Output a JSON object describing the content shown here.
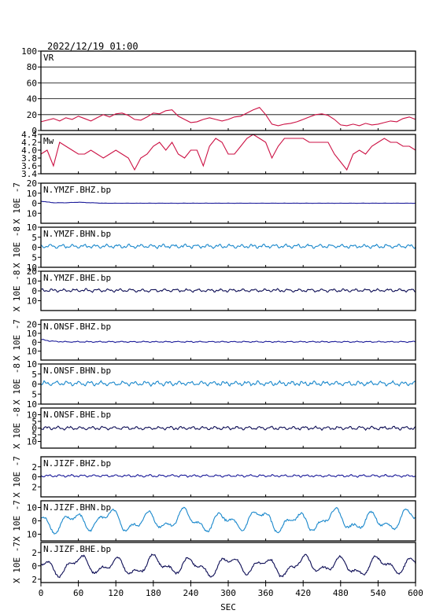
{
  "header": {
    "datetime": "2022/12/19  01:00"
  },
  "colors": {
    "vr": "#cc1144",
    "mw": "#cc1144",
    "z": "#1a1a99",
    "n": "#1a88cc",
    "e": "#0d0d55"
  },
  "chart_data": [
    {
      "type": "line",
      "name": "vr-panel",
      "label": "VR",
      "ylim": [
        0,
        100
      ],
      "yticks": [
        0,
        20,
        40,
        60,
        80,
        100
      ],
      "grid": true,
      "x": [
        0,
        10,
        20,
        30,
        40,
        50,
        60,
        70,
        80,
        90,
        100,
        110,
        120,
        130,
        140,
        150,
        160,
        170,
        180,
        190,
        200,
        210,
        220,
        230,
        240,
        250,
        260,
        270,
        280,
        290,
        300,
        310,
        320,
        330,
        340,
        350,
        360,
        370,
        380,
        390,
        400,
        410,
        420,
        430,
        440,
        450,
        460,
        470,
        480,
        490,
        500,
        510,
        520,
        530,
        540,
        550,
        560,
        570,
        580,
        590,
        600
      ],
      "values": [
        11,
        13,
        15,
        12,
        16,
        14,
        18,
        15,
        12,
        16,
        20,
        17,
        21,
        22,
        19,
        14,
        13,
        17,
        22,
        21,
        25,
        26,
        18,
        14,
        10,
        11,
        14,
        16,
        14,
        12,
        14,
        17,
        18,
        22,
        26,
        29,
        20,
        8,
        6,
        8,
        9,
        11,
        14,
        17,
        20,
        21,
        19,
        14,
        7,
        6,
        8,
        6,
        9,
        7,
        8,
        10,
        12,
        11,
        15,
        17,
        14
      ]
    },
    {
      "type": "line",
      "name": "mw-panel",
      "label": "Mw",
      "ylim": [
        3.4,
        4.4
      ],
      "yticks": [
        3.4,
        3.6,
        3.8,
        4.0,
        4.2,
        4.4
      ],
      "tick_labels": [
        "3.4",
        "3.6",
        "3.8",
        "4.0",
        "4.2",
        "4.4"
      ],
      "x": [
        0,
        10,
        20,
        30,
        40,
        50,
        60,
        70,
        80,
        90,
        100,
        110,
        120,
        130,
        140,
        150,
        160,
        170,
        180,
        190,
        200,
        210,
        220,
        230,
        240,
        250,
        260,
        270,
        280,
        290,
        300,
        310,
        320,
        330,
        340,
        350,
        360,
        370,
        380,
        390,
        400,
        410,
        420,
        430,
        440,
        450,
        460,
        470,
        480,
        490,
        500,
        510,
        520,
        530,
        540,
        550,
        560,
        570,
        580,
        590,
        600
      ],
      "values": [
        3.9,
        4.0,
        3.6,
        4.2,
        4.1,
        4.0,
        3.9,
        3.9,
        4.0,
        3.9,
        3.8,
        3.9,
        4.0,
        3.9,
        3.8,
        3.5,
        3.8,
        3.9,
        4.1,
        4.2,
        4.0,
        4.2,
        3.9,
        3.8,
        4.0,
        4.0,
        3.6,
        4.1,
        4.3,
        4.2,
        3.9,
        3.9,
        4.1,
        4.3,
        4.4,
        4.3,
        4.2,
        3.8,
        4.1,
        4.3,
        4.3,
        4.3,
        4.3,
        4.2,
        4.2,
        4.2,
        4.2,
        3.9,
        3.7,
        3.5,
        3.9,
        4.0,
        3.9,
        4.1,
        4.2,
        4.3,
        4.2,
        4.2,
        4.1,
        4.1,
        4.0
      ]
    },
    {
      "type": "line",
      "name": "ymzf-bhz-panel",
      "label": "N.YMZF.BHZ.bp",
      "ylabel": "X 10E -7",
      "component": "z",
      "ylim": [
        -20,
        20
      ],
      "yticks": [
        -10,
        0,
        10,
        20
      ],
      "tick_labels": [
        "10",
        "0",
        "10",
        "20"
      ],
      "x": [
        0,
        20,
        40,
        60,
        80,
        100,
        120,
        600
      ],
      "values": [
        2,
        0.5,
        0.5,
        1,
        0.5,
        0,
        0,
        0
      ],
      "amp": 0.15,
      "seed": 1
    },
    {
      "type": "line",
      "name": "ymzf-bhn-panel",
      "label": "N.YMZF.BHN.bp",
      "ylabel": "X 10E -8",
      "component": "n",
      "ylim": [
        -10,
        10
      ],
      "yticks": [
        -10,
        -5,
        0,
        5,
        10
      ],
      "tick_labels": [
        "10",
        "5",
        "0",
        "5",
        "10"
      ],
      "x": [
        0,
        600
      ],
      "values": [
        0.5,
        0.5
      ],
      "amp": 1.2,
      "seed": 2
    },
    {
      "type": "line",
      "name": "ymzf-bhe-panel",
      "label": "N.YMZF.BHE.bp",
      "ylabel": "X 10E -8",
      "component": "e",
      "ylim": [
        -20,
        20
      ],
      "yticks": [
        -10,
        0,
        10,
        20
      ],
      "tick_labels": [
        "10",
        "0",
        "10",
        "20"
      ],
      "x": [
        0,
        600
      ],
      "values": [
        0.5,
        0.5
      ],
      "amp": 2.0,
      "seed": 3
    },
    {
      "type": "line",
      "name": "onsf-bhz-panel",
      "label": "N.ONSF.BHZ.bp",
      "ylabel": "X 10E -7",
      "component": "z",
      "ylim": [
        -20,
        25
      ],
      "yticks": [
        -10,
        0,
        10,
        20
      ],
      "tick_labels": [
        "10",
        "0",
        "10",
        "20"
      ],
      "x": [
        0,
        20,
        40,
        600
      ],
      "values": [
        3,
        1,
        0.5,
        0.5
      ],
      "amp": 0.8,
      "seed": 4
    },
    {
      "type": "line",
      "name": "onsf-bhn-panel",
      "label": "N.ONSF.BHN.bp",
      "ylabel": "X 10E -8",
      "component": "n",
      "ylim": [
        -10,
        10
      ],
      "yticks": [
        -10,
        -5,
        0,
        5,
        10
      ],
      "tick_labels": [
        "10",
        "5",
        "0",
        "5",
        "10"
      ],
      "x": [
        0,
        600
      ],
      "values": [
        0.3,
        0.3
      ],
      "amp": 1.4,
      "seed": 5
    },
    {
      "type": "line",
      "name": "onsf-bhe-panel",
      "label": "N.ONSF.BHE.bp",
      "ylabel": "X 10E -8",
      "component": "e",
      "ylim": [
        -15,
        15
      ],
      "yticks": [
        -10,
        -5,
        0,
        5,
        10
      ],
      "tick_labels": [
        "10",
        "5",
        "0",
        "5",
        "10"
      ],
      "x": [
        0,
        600
      ],
      "values": [
        0,
        0
      ],
      "amp": 1.6,
      "seed": 6
    },
    {
      "type": "line",
      "name": "jizf-bhz-panel",
      "label": "N.JIZF.BHZ.bp",
      "ylabel": "X 10E -7",
      "component": "z",
      "ylim": [
        -4,
        4
      ],
      "yticks": [
        -2,
        0,
        2
      ],
      "tick_labels": [
        "2",
        "0",
        "2"
      ],
      "x": [
        0,
        600
      ],
      "values": [
        0.2,
        0.2
      ],
      "amp": 0.3,
      "seed": 7
    },
    {
      "type": "line",
      "name": "jizf-bhn-panel",
      "label": "N.JIZF.BHN.bp",
      "ylabel": "X 10E -7",
      "component": "n",
      "ylim": [
        -15,
        15
      ],
      "yticks": [
        -10,
        0,
        10
      ],
      "tick_labels": [
        "10",
        "0",
        "10"
      ],
      "x": [
        0,
        600
      ],
      "values": [
        0,
        0
      ],
      "amp": 10,
      "seed": 8,
      "wavy": true
    },
    {
      "type": "line",
      "name": "jizf-bhe-panel",
      "label": "N.JIZF.BHE.bp",
      "ylabel": "X 10E -7",
      "component": "e",
      "ylim": [
        -2.5,
        3.5
      ],
      "yticks": [
        -2,
        0,
        2
      ],
      "tick_labels": [
        "2",
        "0",
        "2"
      ],
      "x": [
        0,
        600
      ],
      "values": [
        0,
        0
      ],
      "amp": 1.8,
      "seed": 9,
      "wavy": true
    }
  ],
  "x_axis": {
    "label": "SEC",
    "range": [
      0,
      600
    ],
    "ticks": [
      0,
      60,
      120,
      180,
      240,
      300,
      360,
      420,
      480,
      540,
      600
    ]
  }
}
